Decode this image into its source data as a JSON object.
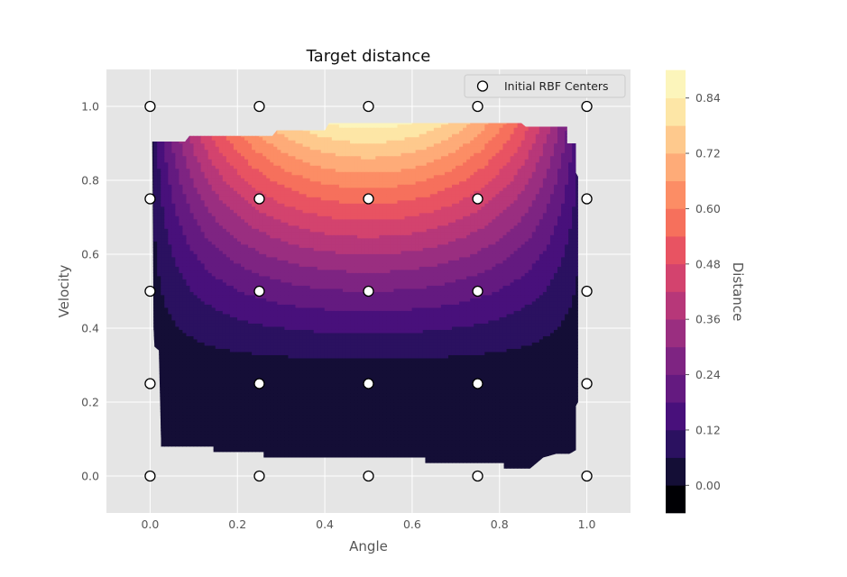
{
  "chart_data": {
    "type": "contourf",
    "title": "Target distance",
    "xlabel": "Angle",
    "ylabel": "Velocity",
    "xlim": [
      -0.1,
      1.1
    ],
    "ylim": [
      -0.1,
      1.1
    ],
    "xticks": [
      0.0,
      0.2,
      0.4,
      0.6,
      0.8,
      1.0
    ],
    "yticks": [
      0.0,
      0.2,
      0.4,
      0.6,
      0.8,
      1.0
    ],
    "grid": true,
    "legend": {
      "placement": "top-right",
      "entries": [
        "Initial RBF Centers"
      ]
    },
    "colorbar": {
      "label": "Distance",
      "range": [
        -0.06,
        0.9
      ],
      "level_step": 0.06,
      "ticks": [
        0.0,
        0.12,
        0.24,
        0.36,
        0.48,
        0.6,
        0.72,
        0.84
      ],
      "colormap": "magma",
      "colors": [
        "#000004",
        "#140e36",
        "#2b1160",
        "#48107b",
        "#641a80",
        "#7e2482",
        "#9a2e80",
        "#b73779",
        "#d3436e",
        "#e85362",
        "#f6705c",
        "#fc8d65",
        "#feab78",
        "#fec98d",
        "#fde6a6",
        "#fcf5bb"
      ]
    },
    "surface": {
      "description": "distance values over the sampled region",
      "peak": {
        "angle": 0.5,
        "velocity": 0.96,
        "value": 0.85
      },
      "data_extent": {
        "angle": [
          0.0,
          1.0
        ],
        "velocity": [
          0.02,
          0.96
        ]
      }
    },
    "series": [
      {
        "name": "Initial RBF Centers",
        "marker": "circle",
        "points": [
          [
            0.0,
            0.0
          ],
          [
            0.25,
            0.0
          ],
          [
            0.5,
            0.0
          ],
          [
            0.75,
            0.0
          ],
          [
            1.0,
            0.0
          ],
          [
            0.0,
            0.25
          ],
          [
            0.25,
            0.25
          ],
          [
            0.5,
            0.25
          ],
          [
            0.75,
            0.25
          ],
          [
            1.0,
            0.25
          ],
          [
            0.0,
            0.5
          ],
          [
            0.25,
            0.5
          ],
          [
            0.5,
            0.5
          ],
          [
            0.75,
            0.5
          ],
          [
            1.0,
            0.5
          ],
          [
            0.0,
            0.75
          ],
          [
            0.25,
            0.75
          ],
          [
            0.5,
            0.75
          ],
          [
            0.75,
            0.75
          ],
          [
            1.0,
            0.75
          ],
          [
            0.0,
            1.0
          ],
          [
            0.25,
            1.0
          ],
          [
            0.5,
            1.0
          ],
          [
            0.75,
            1.0
          ],
          [
            1.0,
            1.0
          ]
        ]
      }
    ]
  }
}
